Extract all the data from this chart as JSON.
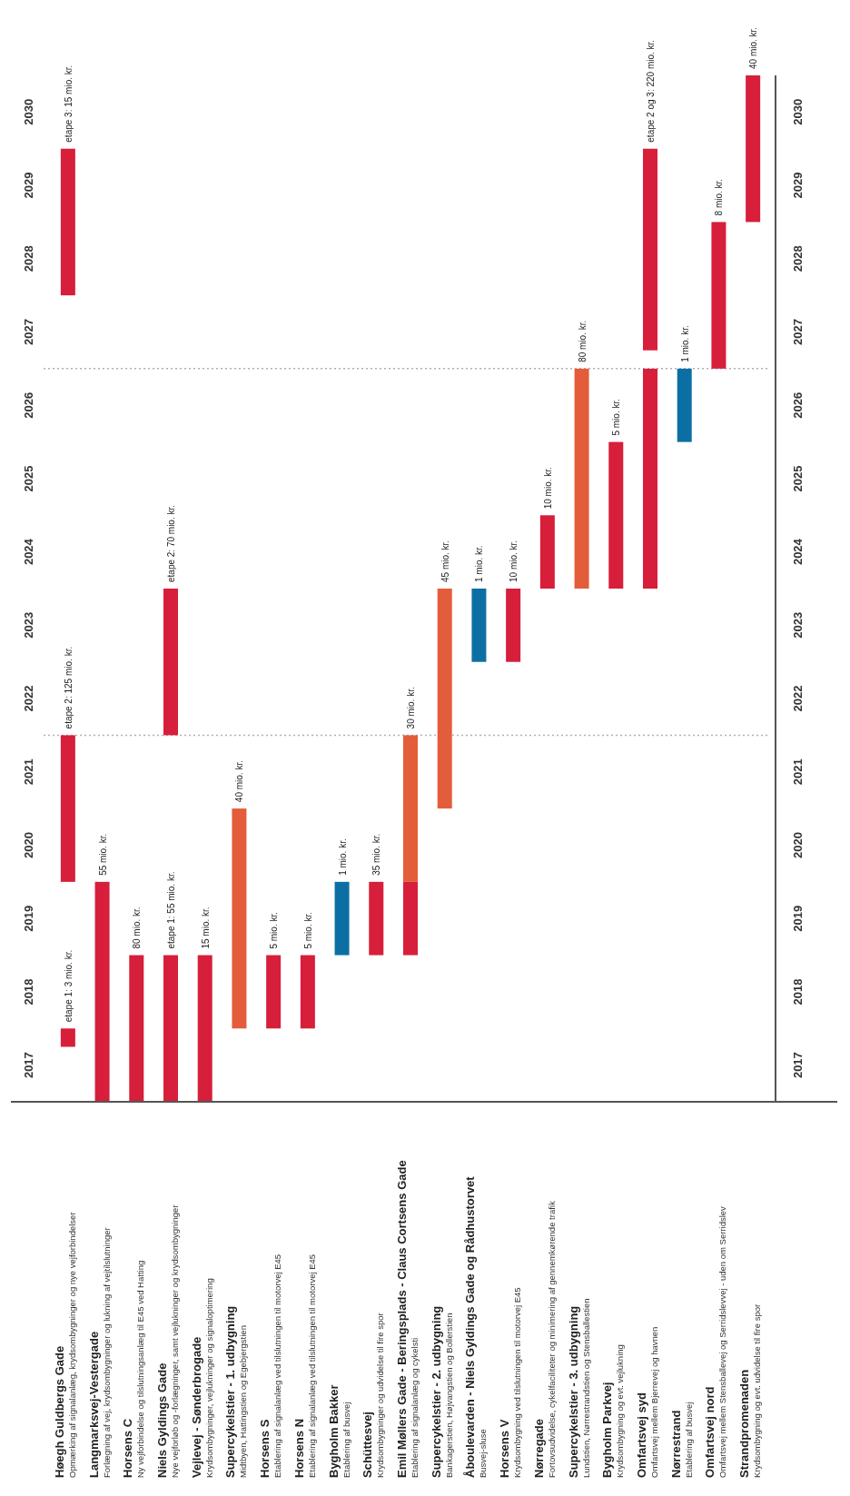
{
  "chart_data": {
    "type": "bar",
    "categories": [
      "Høegh Guldbergs Gade",
      "Langmarksvej-Vestergade",
      "Horsens C",
      "Niels Gyldings Gade",
      "Vejlevej - Sønderbrogade",
      "Supercykelstier - 1. udbygning",
      "Horsens S",
      "Horsens N",
      "Bygholm Bakker",
      "Schüttesvej",
      "Emil Møllers Gade - Beringsplads - Claus Cortsens Gade",
      "Supercykelstier - 2. udbygning",
      "Åboulevarden - Niels Gyldings Gade og Rådhustorvet",
      "Horsens V",
      "Nørregade",
      "Supercykelstier - 3. udbygning",
      "Bygholm Parkvej",
      "Omfartsvej syd",
      "Nørrestrand",
      "Omfartsvej nord",
      "Strandpromenaden"
    ],
    "series": [
      {
        "base": [
          2017.75,
          2017,
          2017,
          2017,
          2017,
          2018,
          2018,
          2018,
          2019,
          2019,
          2019,
          2021,
          2023,
          2023,
          2024,
          2024,
          2024,
          2024,
          2026,
          2027,
          2029
        ],
        "values": [
          0.25,
          3,
          2,
          2,
          2,
          3,
          1,
          1,
          1,
          1,
          1,
          3,
          1,
          1,
          1,
          3,
          2,
          3,
          1,
          2,
          2
        ],
        "colors": [
          "#d71e3b",
          "#d71e3b",
          "#d71e3b",
          "#d71e3b",
          "#d71e3b",
          "#e35d3a",
          "#d71e3b",
          "#d71e3b",
          "#0b6fa4",
          "#d71e3b",
          "#d71e3b",
          "#e35d3a",
          "#0b6fa4",
          "#d71e3b",
          "#d71e3b",
          "#e35d3a",
          "#d71e3b",
          "#d71e3b",
          "#0b6fa4",
          "#d71e3b",
          "#d71e3b"
        ]
      },
      {
        "base": [
          2020,
          null,
          null,
          2022,
          null,
          null,
          null,
          null,
          null,
          null,
          2020,
          null,
          null,
          null,
          null,
          null,
          null,
          2027.25,
          null,
          null,
          null
        ],
        "values": [
          2,
          null,
          null,
          2,
          null,
          null,
          null,
          null,
          null,
          null,
          2,
          null,
          null,
          null,
          null,
          null,
          null,
          2.75,
          null,
          null,
          null
        ],
        "colors": [
          "#d71e3b",
          null,
          null,
          "#d71e3b",
          null,
          null,
          null,
          null,
          null,
          null,
          "#e35d3a",
          null,
          null,
          null,
          null,
          null,
          null,
          "#d71e3b",
          null,
          null,
          null
        ]
      },
      {
        "base": [
          2028,
          null,
          null,
          null,
          null,
          null,
          null,
          null,
          null,
          null,
          null,
          null,
          null,
          null,
          null,
          null,
          null,
          null,
          null,
          null,
          null
        ],
        "values": [
          2,
          null,
          null,
          null,
          null,
          null,
          null,
          null,
          null,
          null,
          null,
          null,
          null,
          null,
          null,
          null,
          null,
          null,
          null,
          null,
          null
        ],
        "colors": [
          "#d71e3b",
          null,
          null,
          null,
          null,
          null,
          null,
          null,
          null,
          null,
          null,
          null,
          null,
          null,
          null,
          null,
          null,
          null,
          null,
          null,
          null
        ]
      }
    ],
    "annotations": [
      "Opmærking af signalanlæg, krydsombygninger og nye vejforbindelser",
      "Forlægning af vej, krydsombygninger og lukning af vejtilslutninger",
      "Ny vejforbindelse og tilslutningsanlæg til E45 ved Hatting",
      "Nye vejforløb og -forlægninger, samt vejlukninger og krydsombygninger",
      "Krydsombygninger, vejlukninger og signaloptimering",
      "Midtbyen, Hattingstien og Egebjergstien",
      "Etablering af signalanlæg ved tilslutningen til motorvej E45",
      "Etablering af signalanlæg ved tilslutningen til motorvej E45",
      "Etablering af busvej",
      "Krydsombygninger og udvidelse til fire spor",
      "Etablering af signalanlæg og cykelsti",
      "Bankagerstien, Højvangstien og Bollerstien",
      "Busvej-sluse",
      "Krydsombygning ved tilslutningen til motorvej E45",
      "Fortovsudvidelse, cykelfaciliteter og minimering af gennemkørende trafik",
      "Lundstien, Nørrestrandstien og Stensballestien",
      "Krydsombygning og evt. vejlukning",
      "Omfartsvej mellem Bjerrevej og havnen",
      "Etablering af busvej",
      "Omfartsvej mellem Stensballevej og Serridslevvej - uden om Serridslev",
      "Krydsombygning og evt. udvidelse til fire spor",
      {
        "text": "etape 1: 3 mio. kr.",
        "x": "Høegh Guldbergs Gade",
        "y": 2018
      },
      {
        "text": "etape 2: 125 mio. kr.",
        "x": "Høegh Guldbergs Gade",
        "y": 2022
      },
      {
        "text": "etape 3: 15 mio. kr.",
        "x": "Høegh Guldbergs Gade",
        "y": 2030
      },
      {
        "text": "55 mio. kr.",
        "x": "Langmarksvej-Vestergade",
        "y": 2020
      },
      {
        "text": "80 mio. kr.",
        "x": "Horsens C",
        "y": 2019
      },
      {
        "text": "etape 1: 55 mio. kr.",
        "x": "Niels Gyldings Gade",
        "y": 2019
      },
      {
        "text": "etape 2: 70 mio. kr.",
        "x": "Niels Gyldings Gade",
        "y": 2024
      },
      {
        "text": "15 mio. kr.",
        "x": "Vejlevej - Sønderbrogade",
        "y": 2019
      },
      {
        "text": "40 mio. kr.",
        "x": "Supercykelstier - 1. udbygning",
        "y": 2021
      },
      {
        "text": "5 mio. kr.",
        "x": "Horsens S",
        "y": 2019
      },
      {
        "text": "5 mio. kr.",
        "x": "Horsens N",
        "y": 2019
      },
      {
        "text": "1 mio. kr.",
        "x": "Bygholm Bakker",
        "y": 2020
      },
      {
        "text": "35 mio. kr.",
        "x": "Schüttesvej",
        "y": 2020
      },
      {
        "text": "30 mio. kr.",
        "x": "Emil Møllers Gade - Beringsplads - Claus Cortsens Gade",
        "y": 2022
      },
      {
        "text": "45 mio. kr.",
        "x": "Supercykelstier - 2. udbygning",
        "y": 2024
      },
      {
        "text": "1 mio. kr.",
        "x": "Åboulevarden - Niels Gyldings Gade og Rådhustorvet",
        "y": 2024
      },
      {
        "text": "10 mio. kr.",
        "x": "Horsens V",
        "y": 2024
      },
      {
        "text": "10 mio. kr.",
        "x": "Nørregade",
        "y": 2025
      },
      {
        "text": "80 mio. kr.",
        "x": "Supercykelstier - 3. udbygning",
        "y": 2027
      },
      {
        "text": "5 mio. kr.",
        "x": "Bygholm Parkvej",
        "y": 2026
      },
      {
        "text": "etape 2 og 3: 220 mio. kr.",
        "x": "Omfartsvej syd",
        "y": 2030
      },
      {
        "text": "1 mio. kr.",
        "x": "Nørrestrand",
        "y": 2027
      },
      {
        "text": "8 mio. kr.",
        "x": "Omfartsvej nord",
        "y": 2029
      },
      {
        "text": "40 mio. kr.",
        "x": "Strandpromenaden",
        "y": 2031
      }
    ],
    "ylim": [
      2017,
      2031
    ],
    "yticks": [
      {
        "value": 2017.5,
        "label": "2017"
      },
      {
        "value": 2018.5,
        "label": "2018"
      },
      {
        "value": 2019.5,
        "label": "2019"
      },
      {
        "value": 2020.5,
        "label": "2020"
      },
      {
        "value": 2021.5,
        "label": "2021"
      },
      {
        "value": 2022.5,
        "label": "2022"
      },
      {
        "value": 2023.5,
        "label": "2023"
      },
      {
        "value": 2024.5,
        "label": "2024"
      },
      {
        "value": 2025.5,
        "label": "2025"
      },
      {
        "value": 2026.5,
        "label": "2026"
      },
      {
        "value": 2027.5,
        "label": "2027"
      },
      {
        "value": 2028.5,
        "label": "2028"
      },
      {
        "value": 2029.5,
        "label": "2029"
      },
      {
        "value": 2030.5,
        "label": "2030"
      }
    ],
    "y2lim": [
      2017,
      2031
    ],
    "y2ticks": [
      {
        "value": 2017.5,
        "label": "2017"
      },
      {
        "value": 2018.5,
        "label": "2018"
      },
      {
        "value": 2019.5,
        "label": "2019"
      },
      {
        "value": 2020.5,
        "label": "2020"
      },
      {
        "value": 2021.5,
        "label": "2021"
      },
      {
        "value": 2022.5,
        "label": "2022"
      },
      {
        "value": 2023.5,
        "label": "2023"
      },
      {
        "value": 2024.5,
        "label": "2024"
      },
      {
        "value": 2025.5,
        "label": "2025"
      },
      {
        "value": 2026.5,
        "label": "2026"
      },
      {
        "value": 2027.5,
        "label": "2027"
      },
      {
        "value": 2028.5,
        "label": "2028"
      },
      {
        "value": 2029.5,
        "label": "2029"
      },
      {
        "value": 2030.5,
        "label": "2030"
      }
    ],
    "ref_lines": [
      {
        "axis": "y",
        "value": 2022,
        "color": "#b0b0b0",
        "line_style": "dotted"
      },
      {
        "axis": "y",
        "value": 2027,
        "color": "#b0b0b0",
        "line_style": "dotted"
      }
    ],
    "grid": false
  }
}
